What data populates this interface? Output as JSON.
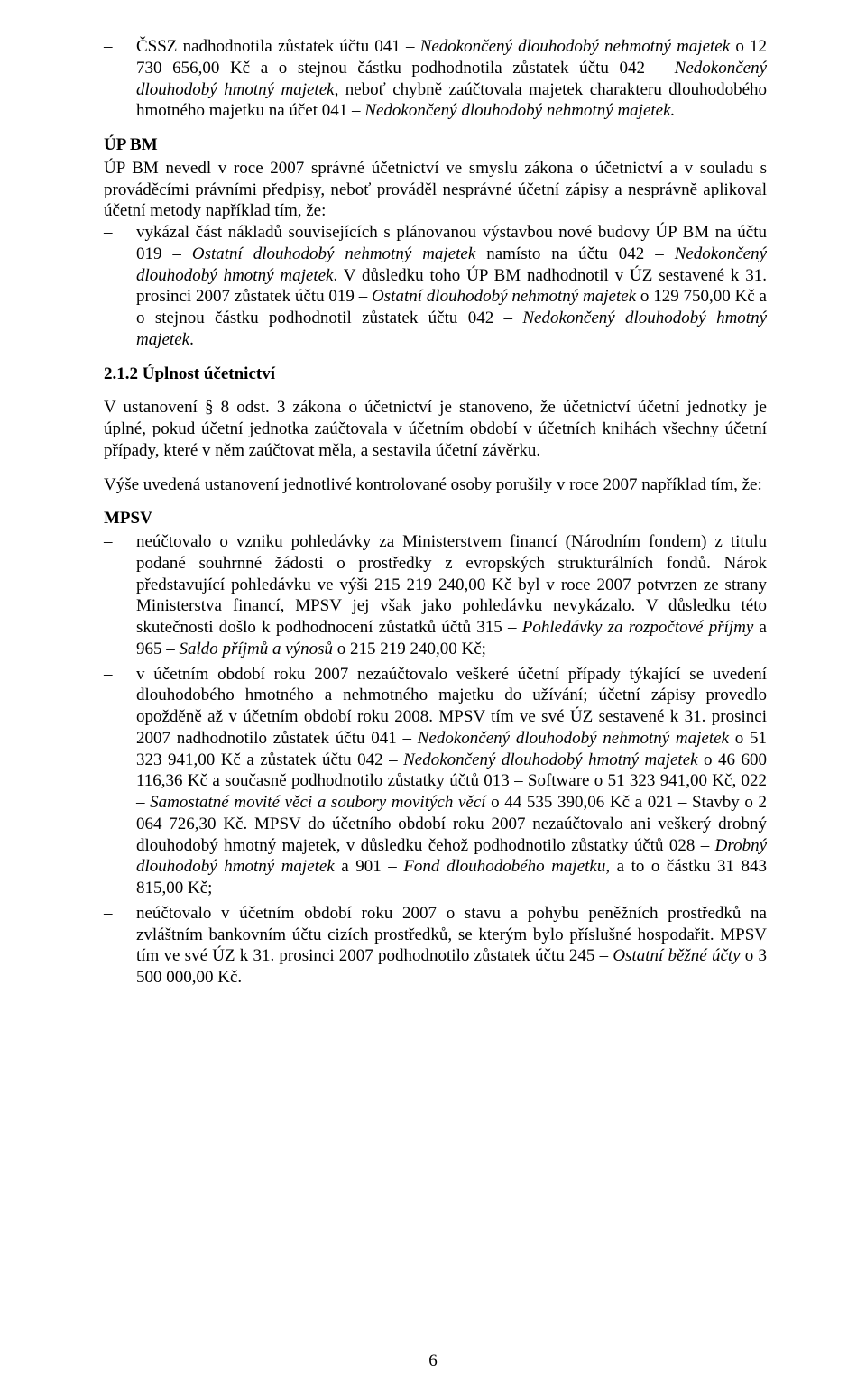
{
  "block1": {
    "li1_pre": "ČSSZ nadhodnotila zůstatek účtu 041 ",
    "li1_i1": "Nedokončený dlouhodobý nehmotný majetek",
    "li1_mid1": " o 12 730 656,00 Kč a o stejnou částku podhodnotila zůstatek účtu 042 ",
    "li1_i2": "Nedokončený dlouhodobý hmotný majetek",
    "li1_mid2": ", neboť chybně zaúčtovala majetek charakteru dlouhodobého hmotného majetku na účet 041 ",
    "li1_i3": "Nedokončený dlouhodobý nehmotný majetek."
  },
  "upbm": {
    "heading": "ÚP BM",
    "intro": "ÚP BM nevedl v roce 2007 správné účetnictví ve smyslu zákona o účetnictví a v souladu s prováděcími právními předpisy, neboť prováděl nesprávné účetní zápisy a nesprávně aplikoval účetní metody například tím, že:",
    "li_pre": "vykázal část nákladů souvisejících s plánovanou výstavbou nové budovy ÚP BM na účtu 019 – ",
    "li_i1": "Ostatní dlouhodobý nehmotný majetek",
    "li_mid1": " namísto na účtu 042 – ",
    "li_i2": "Nedokončený dlouhodobý hmotný majetek",
    "li_mid2": ". V důsledku toho ÚP BM nadhodnotil v ÚZ sestavené k 31. prosinci 2007 zůstatek účtu 019 – ",
    "li_i3": "Ostatní dlouhodobý nehmotný majetek",
    "li_mid3": " o 129 750,00 Kč a o stejnou částku podhodnotil zůstatek účtu 042 – ",
    "li_i4": "Nedokončený dlouhodobý hmotný majetek",
    "li_post": "."
  },
  "s212": {
    "title": "2.1.2 Úplnost účetnictví",
    "p1": "V ustanovení § 8 odst. 3 zákona o účetnictví je stanoveno, že účetnictví účetní jednotky je úplné, pokud účetní jednotka zaúčtovala v účetním období v účetních knihách všechny účetní případy, které v něm zaúčtovat měla, a sestavila účetní závěrku.",
    "p2": "Výše uvedená ustanovení jednotlivé kontrolované osoby porušily v roce 2007 například tím, že:"
  },
  "mpsv": {
    "heading": "MPSV",
    "li1_pre": "neúčtovalo o vzniku pohledávky za Ministerstvem financí (Národním fondem) z titulu podané souhrnné žádosti o prostředky z evropských strukturálních fondů. Nárok představující pohledávku ve výši 215 219 240,00 Kč byl v roce 2007 potvrzen ze strany Ministerstva financí, MPSV jej však jako pohledávku nevykázalo. V důsledku této skutečnosti došlo k podhodnocení zůstatků účtů 315 – ",
    "li1_i1": "Pohledávky za rozpočtové příjmy",
    "li1_mid1": " a 965 – ",
    "li1_i2": "Saldo příjmů a výnosů",
    "li1_post1": " o 215 219 240,00 Kč;",
    "li2_pre": "v účetním období roku 2007 nezaúčtovalo veškeré účetní případy týkající se uvedení dlouhodobého hmotného a nehmotného majetku do užívání; účetní zápisy provedlo opožděně až v účetním období roku 2008. MPSV tím ve své ÚZ sestavené k 31. prosinci 2007 nadhodnotilo zůstatek účtu 041 – ",
    "li2_i1": "Nedokončený dlouhodobý nehmotný majetek",
    "li2_mid1": " o 51 323 941,00 Kč a zůstatek účtu 042 – ",
    "li2_i2": "Nedokončený dlouhodobý hmotný majetek",
    "li2_mid2": " o 46 600 116,36 Kč a současně podhodnotilo zůstatky účtů 013 – Software o 51 323 941,00 Kč, 022 – ",
    "li2_i3": "Samostatné movité věci a soubory movitých věcí",
    "li2_mid3": " o 44 535 390,06 Kč a 021 – Stavby o 2 064 726,30 Kč. MPSV do účetního období roku 2007 nezaúčtovalo ani veškerý drobný dlouhodobý hmotný majetek, v důsledku čehož podhodnotilo zůstatky účtů 028 – ",
    "li2_i4": "Drobný dlouhodobý hmotný majetek",
    "li2_mid4": " a 901 – ",
    "li2_i5": "Fond dlouhodobého majetku,",
    "li2_post": " a to o částku 31 843 815,00 Kč;",
    "li3_pre": "neúčtovalo v účetním období roku 2007 o stavu a pohybu peněžních prostředků na zvláštním bankovním účtu cizích prostředků, se kterým bylo příslušné hospodařit. MPSV tím ve své ÚZ k 31. prosinci 2007 podhodnotilo zůstatek účtu 245 – ",
    "li3_i1": "Ostatní běžné účty",
    "li3_post": " o 3 500 000,00 Kč."
  },
  "page_number": "6"
}
